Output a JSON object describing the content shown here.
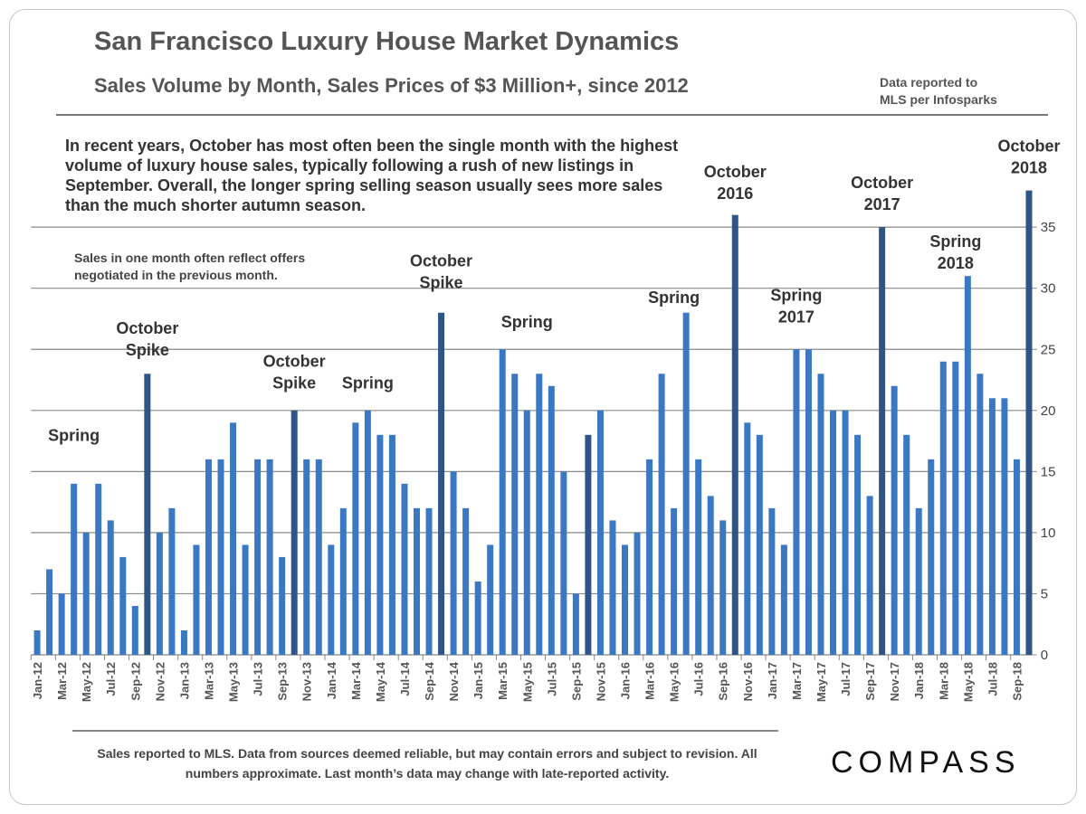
{
  "header": {
    "title": "San Francisco Luxury House Market Dynamics",
    "subtitle": "Sales Volume by Month, Sales Prices of $3 Million+,  since 2012",
    "source_line1": "Data reported to",
    "source_line2": "MLS per Infosparks"
  },
  "description": "In recent years, October has most often been the single month with the highest volume of luxury house sales, typically following a rush of new listings in September. Overall, the longer spring selling season usually sees more sales than the much shorter autumn season.",
  "note": "Sales in one month often reflect offers negotiated in the previous month.",
  "footer": "Sales reported to MLS. Data from sources  deemed reliable, but may contain errors and subject to revision. All numbers approximate. Last month’s data may change with late-reported activity.",
  "logo": "COMPASS",
  "chart_data": {
    "type": "bar",
    "title": "",
    "xlabel": "",
    "ylabel": "",
    "ylim": [
      0,
      38
    ],
    "yticks": [
      0,
      5,
      10,
      15,
      20,
      25,
      30,
      35
    ],
    "y_axis_side": "right",
    "grid": true,
    "colors": {
      "regular": "#3b78c3",
      "october": "#2e5585"
    },
    "categories": [
      "Jan-12",
      "Feb-12",
      "Mar-12",
      "Apr-12",
      "May-12",
      "Jun-12",
      "Jul-12",
      "Aug-12",
      "Sep-12",
      "Oct-12",
      "Nov-12",
      "Dec-12",
      "Jan-13",
      "Feb-13",
      "Mar-13",
      "Apr-13",
      "May-13",
      "Jun-13",
      "Jul-13",
      "Aug-13",
      "Sep-13",
      "Oct-13",
      "Nov-13",
      "Dec-13",
      "Jan-14",
      "Feb-14",
      "Mar-14",
      "Apr-14",
      "May-14",
      "Jun-14",
      "Jul-14",
      "Aug-14",
      "Sep-14",
      "Oct-14",
      "Nov-14",
      "Dec-14",
      "Jan-15",
      "Feb-15",
      "Mar-15",
      "Apr-15",
      "May-15",
      "Jun-15",
      "Jul-15",
      "Aug-15",
      "Sep-15",
      "Oct-15",
      "Nov-15",
      "Dec-15",
      "Jan-16",
      "Feb-16",
      "Mar-16",
      "Apr-16",
      "May-16",
      "Jun-16",
      "Jul-16",
      "Aug-16",
      "Sep-16",
      "Oct-16",
      "Nov-16",
      "Dec-16",
      "Jan-17",
      "Feb-17",
      "Mar-17",
      "Apr-17",
      "May-17",
      "Jun-17",
      "Jul-17",
      "Aug-17",
      "Sep-17",
      "Oct-17",
      "Nov-17",
      "Dec-17",
      "Jan-18",
      "Feb-18",
      "Mar-18",
      "Apr-18",
      "May-18",
      "Jun-18",
      "Jul-18",
      "Aug-18",
      "Sep-18",
      "Oct-18"
    ],
    "values": [
      2,
      7,
      5,
      14,
      10,
      14,
      11,
      8,
      4,
      23,
      10,
      12,
      2,
      9,
      16,
      16,
      19,
      9,
      16,
      16,
      8,
      20,
      16,
      16,
      9,
      12,
      19,
      20,
      18,
      18,
      14,
      12,
      12,
      28,
      15,
      12,
      6,
      9,
      25,
      23,
      20,
      23,
      22,
      15,
      5,
      18,
      20,
      11,
      9,
      10,
      16,
      23,
      12,
      28,
      16,
      13,
      11,
      36,
      19,
      18,
      12,
      9,
      25,
      25,
      23,
      20,
      20,
      18,
      13,
      35,
      22,
      18,
      12,
      16,
      24,
      24,
      31,
      23,
      21,
      21,
      16,
      38
    ],
    "annotations": [
      {
        "lines": [
          "Spring"
        ],
        "month": "Apr-12",
        "value": 17.5
      },
      {
        "lines": [
          "October",
          "Spike"
        ],
        "month": "Oct-12",
        "value": 24.5
      },
      {
        "lines": [
          "October",
          "Spike"
        ],
        "month": "Oct-13",
        "value": 21.8
      },
      {
        "lines": [
          "Spring"
        ],
        "month": "Apr-14",
        "value": 21.8
      },
      {
        "lines": [
          "October",
          "Spike"
        ],
        "month": "Oct-14",
        "value": 30
      },
      {
        "lines": [
          "Spring"
        ],
        "month": "May-15",
        "value": 26.8
      },
      {
        "lines": [
          "Spring"
        ],
        "month": "May-16",
        "value": 28.8
      },
      {
        "lines": [
          "October",
          "2016"
        ],
        "month": "Oct-16",
        "value": 37.3
      },
      {
        "lines": [
          "Spring",
          "2017"
        ],
        "month": "Mar-17",
        "value": 27.2
      },
      {
        "lines": [
          "October",
          "2017"
        ],
        "month": "Oct-17",
        "value": 36.4
      },
      {
        "lines": [
          "Spring",
          "2018"
        ],
        "month": "Apr-18",
        "value": 31.6
      },
      {
        "lines": [
          "October",
          "2018"
        ],
        "month": "Oct-18",
        "value": 39.4
      }
    ]
  }
}
